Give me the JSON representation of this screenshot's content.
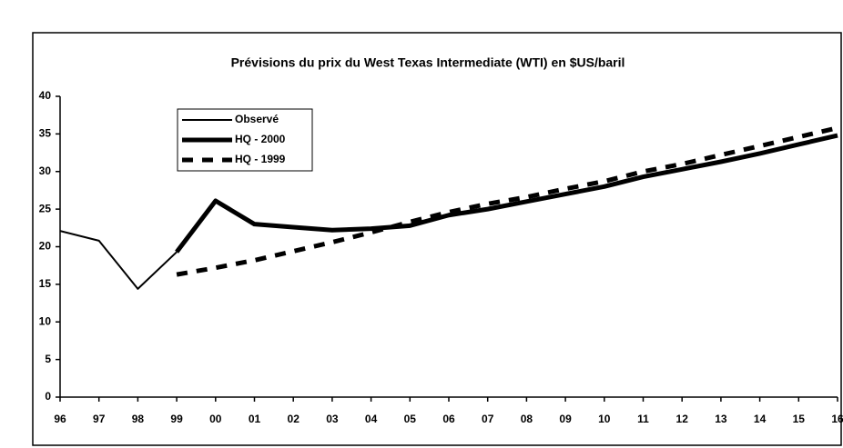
{
  "chart_data": {
    "type": "line",
    "title": "Prévisions du prix du West Texas Intermediate (WTI) en $US/baril",
    "categories": [
      "96",
      "97",
      "98",
      "99",
      "00",
      "01",
      "02",
      "03",
      "04",
      "05",
      "06",
      "07",
      "08",
      "09",
      "10",
      "11",
      "12",
      "13",
      "14",
      "15",
      "16"
    ],
    "series": [
      {
        "name": "Observé",
        "color": "#000000",
        "width": 2,
        "dashed": false,
        "values": [
          22.1,
          20.8,
          14.4,
          19.3,
          null,
          null,
          null,
          null,
          null,
          null,
          null,
          null,
          null,
          null,
          null,
          null,
          null,
          null,
          null,
          null,
          null
        ]
      },
      {
        "name": "HQ - 2000",
        "color": "#000000",
        "width": 5,
        "dashed": false,
        "values": [
          null,
          null,
          null,
          19.3,
          26.1,
          23.0,
          22.6,
          22.2,
          22.4,
          22.8,
          24.2,
          25.0,
          26.0,
          27.0,
          28.0,
          29.3,
          30.3,
          31.3,
          32.4,
          33.6,
          34.8
        ]
      },
      {
        "name": "HQ - 1999",
        "color": "#000000",
        "width": 5,
        "dashed": true,
        "values": [
          null,
          null,
          null,
          16.3,
          17.2,
          18.2,
          19.4,
          20.6,
          21.9,
          23.3,
          24.6,
          25.7,
          26.6,
          27.7,
          28.7,
          30.0,
          31.0,
          32.2,
          33.4,
          34.6,
          35.8
        ]
      }
    ],
    "ylim": [
      0,
      40
    ],
    "yticks": [
      0,
      5,
      10,
      15,
      20,
      25,
      30,
      35,
      40
    ],
    "legend": "upper left",
    "grid": false
  }
}
